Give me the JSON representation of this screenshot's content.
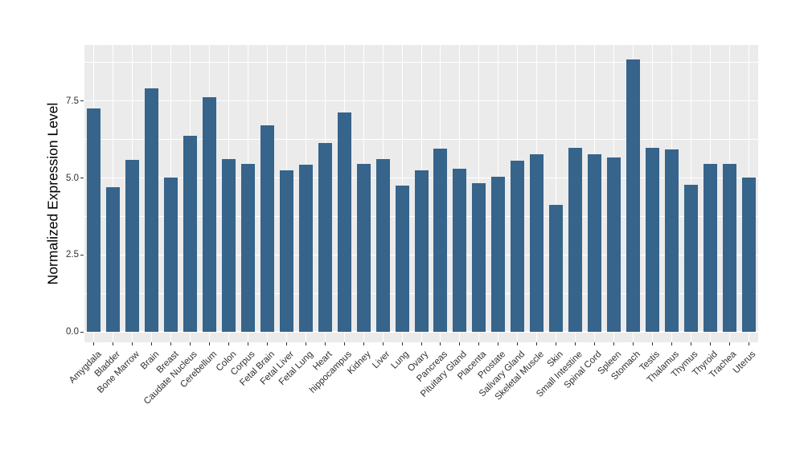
{
  "chart_data": {
    "type": "bar",
    "title": "",
    "xlabel": "",
    "ylabel": "Normalized Expression Level",
    "categories": [
      "Amygdala",
      "Bladder",
      "Bone Marrow",
      "Brain",
      "Breast",
      "Caudate Nucleus",
      "Cerebellum",
      "Colon",
      "Corpus",
      "Fetal Brain",
      "Fetal Liver",
      "Fetal Lung",
      "Heart",
      "hippocampus",
      "Kidney",
      "Liver",
      "Lung",
      "Ovary",
      "Pancreas",
      "Pituitary Gland",
      "Placenta",
      "Prostate",
      "Salivary Gland",
      "Skeletal Muscle",
      "Skin",
      "Small Intestine",
      "Spinal Cord",
      "Spleen",
      "Stomach",
      "Testis",
      "Thalamus",
      "Thymus",
      "Thyroid",
      "Trachea",
      "Uterus"
    ],
    "values": [
      7.25,
      4.7,
      5.58,
      7.9,
      5.01,
      6.37,
      7.62,
      5.62,
      5.45,
      6.71,
      5.24,
      5.44,
      6.13,
      7.13,
      5.46,
      5.61,
      4.75,
      5.25,
      5.95,
      5.29,
      4.82,
      5.03,
      5.56,
      5.78,
      4.12,
      5.97,
      5.77,
      5.66,
      8.85,
      5.97,
      5.92,
      4.79,
      5.45,
      5.45,
      5.01
    ],
    "ylim": [
      0,
      9.3
    ],
    "yticks": {
      "values": [
        0,
        2.5,
        5,
        7.5
      ],
      "labels": [
        "0.0",
        "2.5",
        "5.0",
        "7.5"
      ]
    },
    "minor_yticks": [
      1.25,
      3.75,
      6.25,
      8.75
    ],
    "grid": "major-and-minor-white-on-gray",
    "legend": "none",
    "colors": {
      "bar": "#36648B",
      "panel_bg": "#EBEBEB",
      "grid": "#FFFFFF",
      "axis_text": "#303030",
      "axis_title_text": "#000000",
      "background": "#FFFFFF"
    }
  }
}
